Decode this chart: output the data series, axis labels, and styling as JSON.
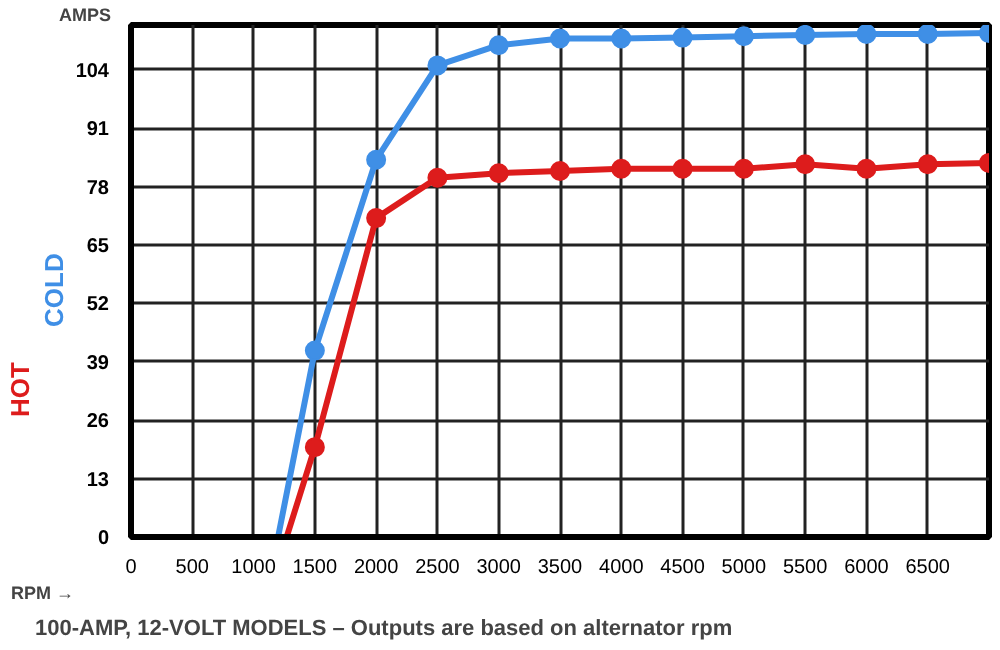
{
  "chart_data": {
    "type": "line",
    "xlabel": "RPM →",
    "ylabel": "AMPS",
    "annotations": [
      "100-AMP, 12-VOLT MODELS – Outputs are based on alternator rpm"
    ],
    "series": [
      {
        "name": "COLD",
        "color": "#3f8fe6",
        "x": [
          1200,
          1500,
          2000,
          2500,
          3000,
          3500,
          4000,
          4500,
          5000,
          5500,
          6000,
          6500,
          7000
        ],
        "values": [
          0,
          41.5,
          84,
          105,
          109.5,
          111,
          111,
          111.2,
          111.5,
          111.8,
          112,
          112,
          112.2
        ]
      },
      {
        "name": "HOT",
        "color": "#dd1c1c",
        "x": [
          1270,
          1500,
          2000,
          2500,
          3000,
          3500,
          4000,
          4500,
          5000,
          5500,
          6000,
          6500,
          7000
        ],
        "values": [
          0,
          20,
          71,
          80,
          81,
          81.5,
          82,
          82,
          82,
          83,
          82,
          83,
          83.3
        ]
      }
    ],
    "xlim": [
      0,
      7000
    ],
    "ylim": [
      0,
      114
    ],
    "xticks": [
      0,
      500,
      1000,
      1500,
      2000,
      2500,
      3000,
      3500,
      4000,
      4500,
      5000,
      5500,
      6000,
      6500
    ],
    "yticks": [
      0,
      13,
      26,
      39,
      52,
      65,
      78,
      91,
      104
    ],
    "grid": true,
    "marker": "circle",
    "line_style": "solid"
  }
}
